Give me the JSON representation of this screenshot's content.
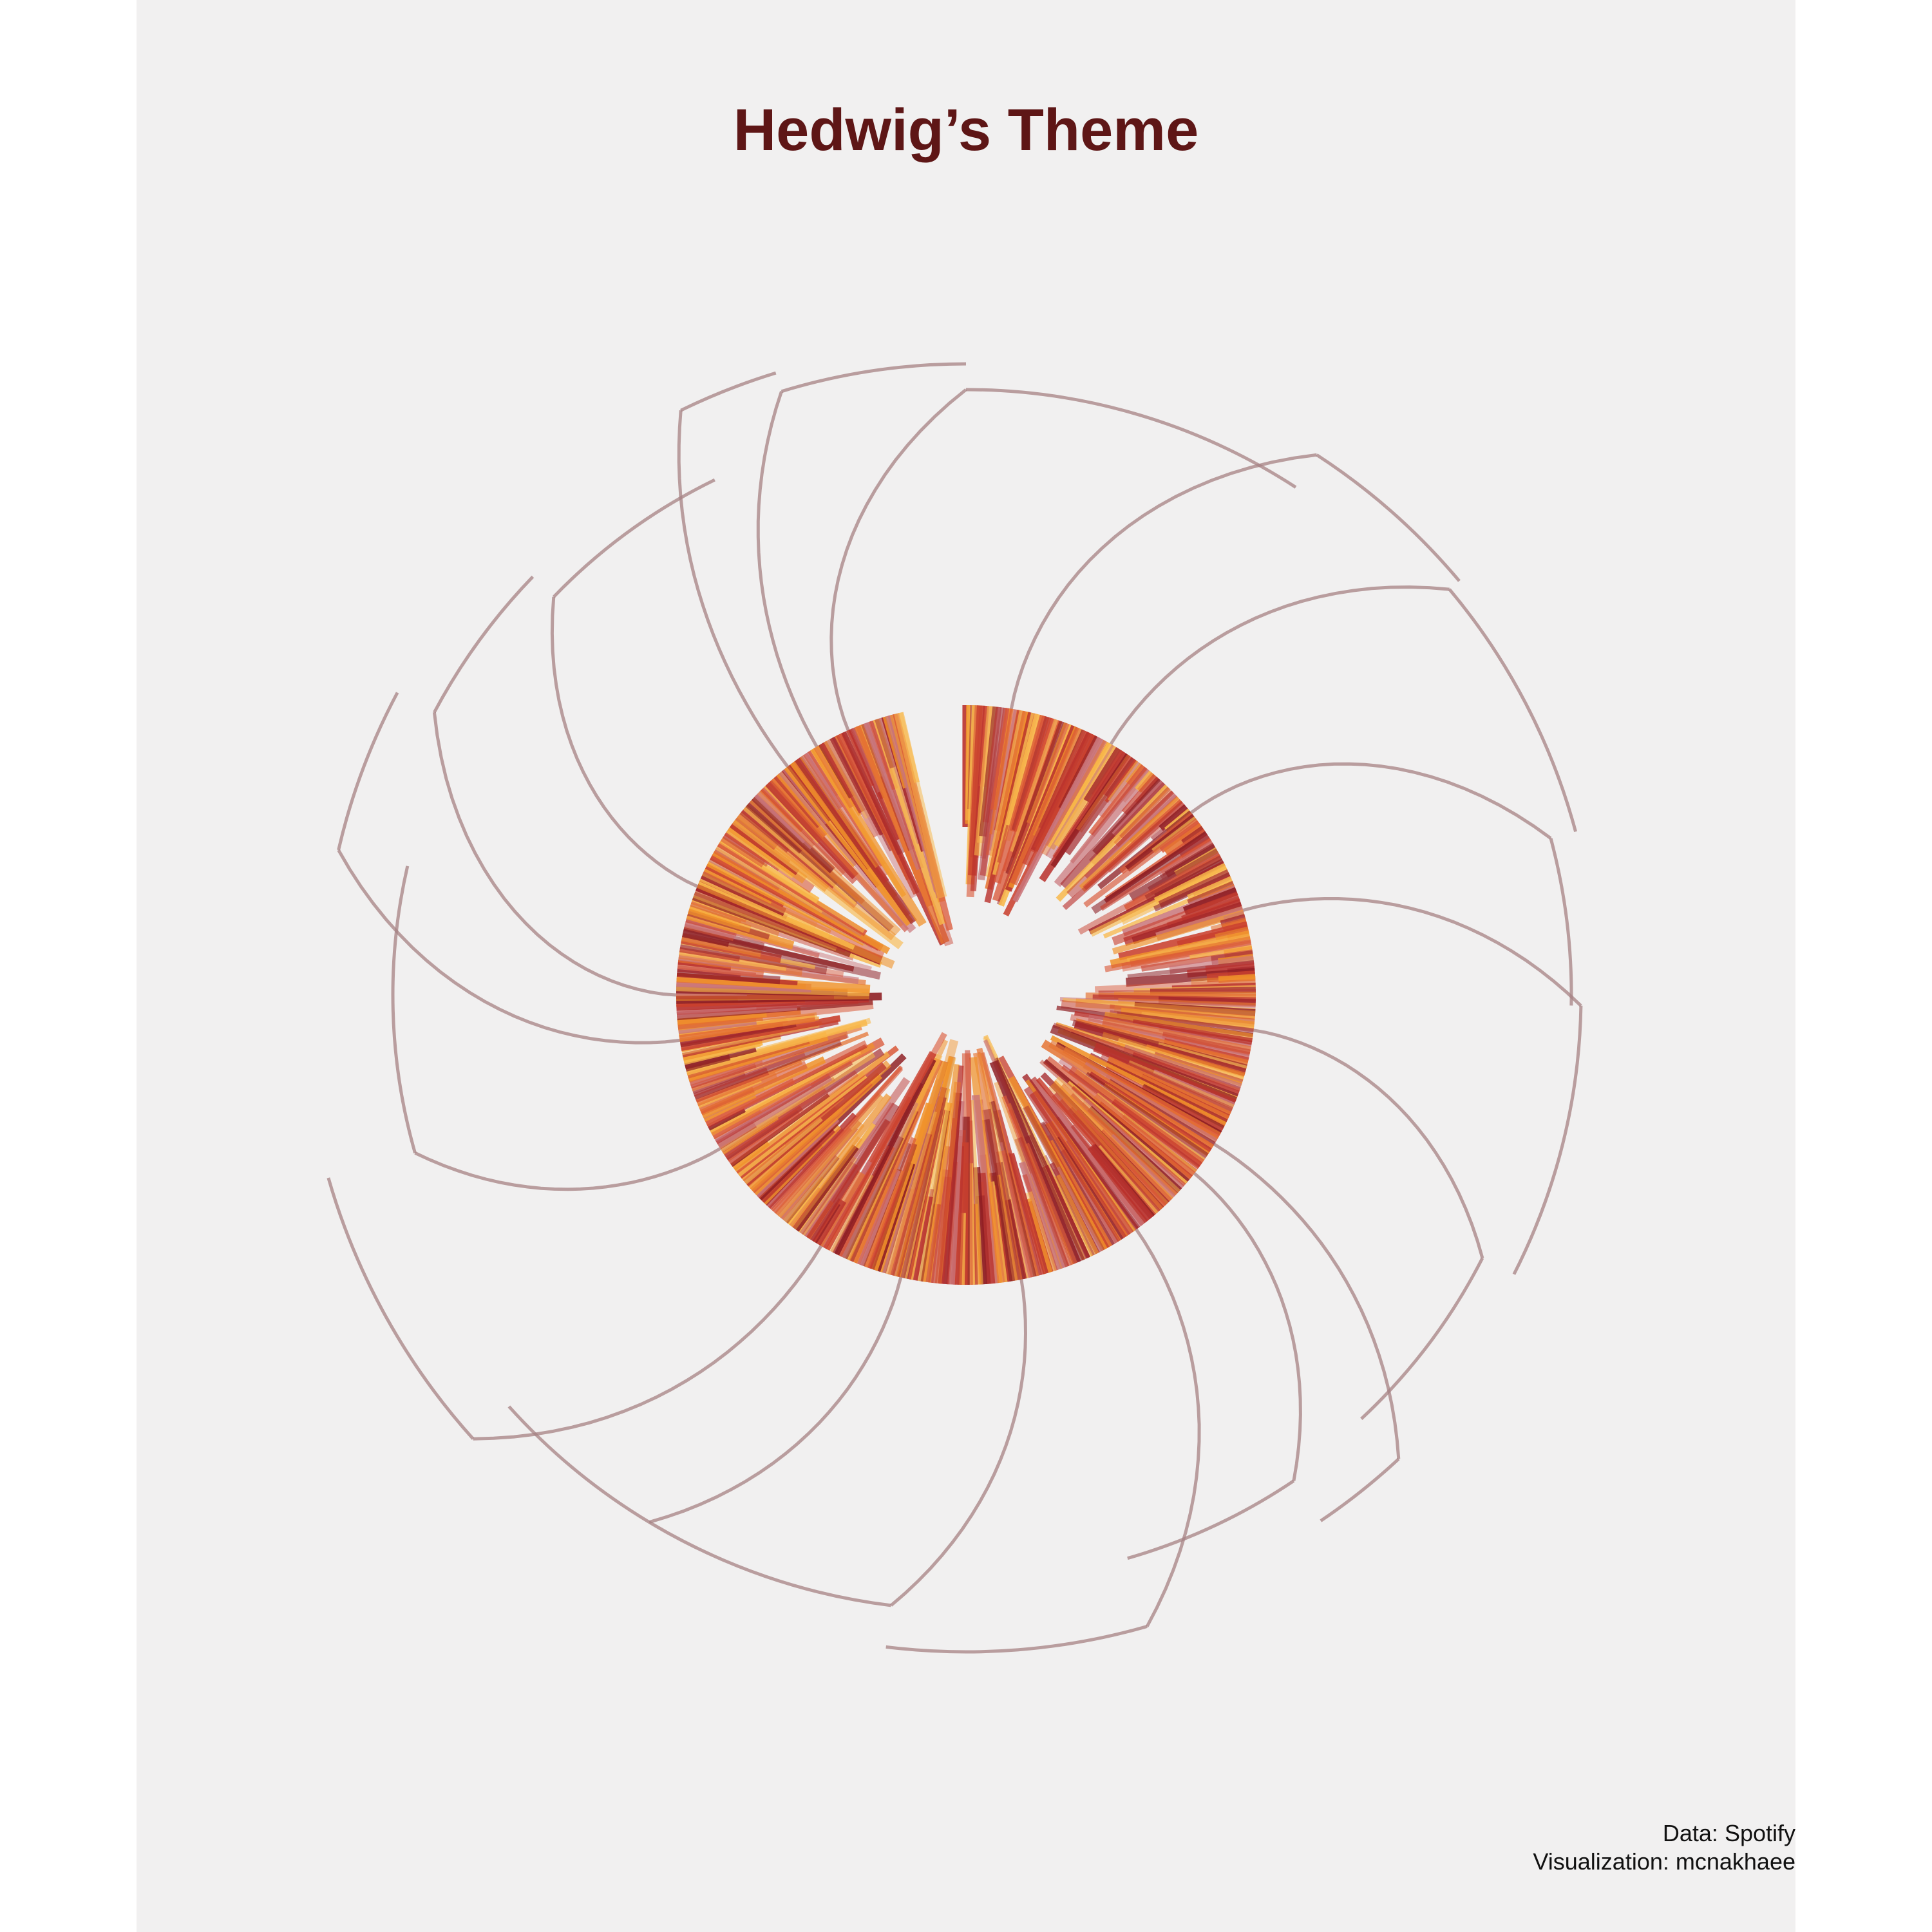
{
  "chart_data": {
    "type": "radial-bar",
    "title": "Hedwig’s Theme",
    "caption": {
      "source": "Data: Spotify",
      "credit": "Visualization: mcnakhaee"
    },
    "segment_count": 18,
    "start_angle_deg": 0,
    "segment_spans_deg": [
      33,
      17,
      25,
      16,
      26,
      20,
      9,
      18,
      23,
      24,
      17,
      26,
      29,
      15,
      16,
      20,
      9,
      17
    ],
    "segment_outer_radius": [
      940,
      1000,
      980,
      940,
      955,
      900,
      985,
      910,
      1020,
      955,
      955,
      1030,
      890,
      1000,
      935,
      890,
      1010,
      980
    ],
    "segment_twist_deg": [
      24,
      24,
      20,
      24,
      18,
      20,
      16,
      18,
      20,
      18,
      18,
      18,
      16,
      22,
      28,
      22,
      12,
      14
    ],
    "bar_profile": {
      "bars_per_degree": 2,
      "inner_radius_min": 130,
      "inner_radius_max": 440,
      "outer_radius": 450,
      "gap_start_deg": 347,
      "gap_end_deg": 360
    },
    "colors": [
      "#8e1d22",
      "#a4272a",
      "#b9312c",
      "#c9402e",
      "#d95636",
      "#e5712f",
      "#f0922a",
      "#f8b84a",
      "#c97378"
    ],
    "arc_color": "#a58283"
  }
}
